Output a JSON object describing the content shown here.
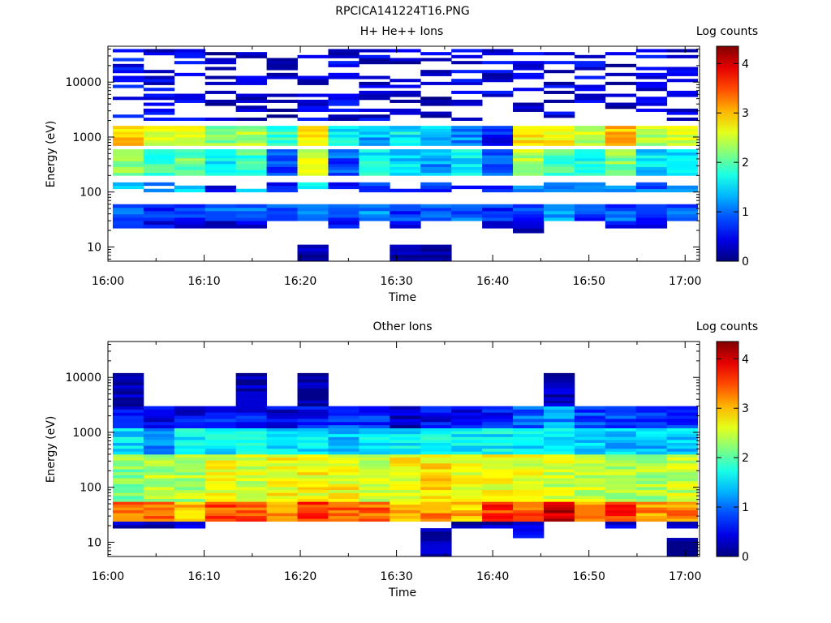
{
  "figure": {
    "title": "RPCICA141224T16.PNG"
  },
  "colorbar": {
    "label": "Log counts",
    "ticks": [
      "0",
      "1",
      "2",
      "3",
      "4"
    ],
    "min": 0,
    "max": 4.35
  },
  "chart_data": [
    {
      "type": "heatmap",
      "title": "H+ He++ Ions",
      "xlabel": "Time",
      "ylabel": "Energy (eV)",
      "x_ticks": [
        "16:00",
        "16:10",
        "16:20",
        "16:30",
        "16:40",
        "16:50",
        "17:00"
      ],
      "x_range_minutes": [
        0,
        61.5
      ],
      "y_scale": "log",
      "y_ticks": [
        "10",
        "100",
        "1000",
        "10000"
      ],
      "y_range": [
        5.5,
        45000
      ],
      "colorbar_label": "Log counts",
      "time_bins_minutes": [
        0.5,
        3.7,
        6.9,
        10.1,
        13.3,
        16.5,
        19.7,
        22.9,
        26.1,
        29.3,
        32.5,
        35.7,
        38.9,
        42.1,
        45.3,
        48.5,
        51.7,
        54.9,
        58.1,
        61.3
      ],
      "energy_profile_log_counts": [
        {
          "energy_range": [
            5.5,
            11
          ],
          "values": [
            null,
            null,
            null,
            null,
            null,
            null,
            0.1,
            null,
            null,
            0.1,
            0.1,
            null,
            null,
            null,
            null,
            null,
            null,
            null,
            null
          ]
        },
        {
          "energy_range": [
            18,
            22
          ],
          "values": [
            null,
            null,
            null,
            null,
            null,
            null,
            null,
            null,
            null,
            null,
            null,
            null,
            null,
            0.3,
            null,
            null,
            null,
            null,
            null
          ]
        },
        {
          "energy_range": [
            22,
            30
          ],
          "values": [
            0.6,
            0.5,
            0.3,
            0.3,
            0.3,
            null,
            null,
            0.5,
            null,
            0.4,
            null,
            null,
            0.5,
            0.5,
            null,
            null,
            0.4,
            0.4,
            null
          ]
        },
        {
          "energy_range": [
            30,
            60
          ],
          "values": [
            0.9,
            0.7,
            0.8,
            0.9,
            1.1,
            0.9,
            1.0,
            0.9,
            1.1,
            0.8,
            0.9,
            0.9,
            0.7,
            0.8,
            1.2,
            0.8,
            0.9,
            0.7,
            0.9
          ]
        },
        {
          "energy_range": [
            100,
            150
          ],
          "values": [
            1.4,
            1.2,
            1.3,
            0.5,
            1.4,
            0.6,
            1.8,
            0.6,
            0.8,
            0.5,
            0.8,
            0.6,
            0.5,
            1.3,
            1.2,
            1.0,
            1.2,
            1.0,
            1.1
          ]
        },
        {
          "energy_range": [
            200,
            600
          ],
          "values": [
            2.2,
            1.9,
            2.1,
            1.6,
            1.9,
            0.8,
            2.6,
            0.9,
            1.6,
            1.5,
            1.2,
            1.6,
            1.0,
            2.4,
            2.0,
            1.8,
            2.2,
            1.5,
            1.6
          ]
        },
        {
          "energy_range": [
            700,
            1600
          ],
          "values": [
            2.9,
            2.5,
            2.5,
            2.2,
            2.4,
            1.8,
            2.8,
            1.6,
            1.3,
            1.6,
            1.4,
            1.2,
            0.6,
            2.8,
            2.7,
            2.5,
            3.0,
            2.4,
            2.5
          ]
        },
        {
          "energy_range": [
            2000,
            40000
          ],
          "values": [
            0.5,
            0.4,
            0.4,
            0.3,
            0.4,
            0.3,
            0.4,
            0.4,
            0.4,
            0.3,
            0.3,
            0.4,
            0.4,
            0.4,
            0.4,
            0.4,
            0.3,
            0.4,
            0.3
          ]
        }
      ]
    },
    {
      "type": "heatmap",
      "title": "Other Ions",
      "xlabel": "Time",
      "ylabel": "Energy (eV)",
      "x_ticks": [
        "16:00",
        "16:10",
        "16:20",
        "16:30",
        "16:40",
        "16:50",
        "17:00"
      ],
      "x_range_minutes": [
        0,
        61.5
      ],
      "y_scale": "log",
      "y_ticks": [
        "10",
        "100",
        "1000",
        "10000"
      ],
      "y_range": [
        5.5,
        45000
      ],
      "colorbar_label": "Log counts",
      "time_bins_minutes": [
        0.5,
        3.7,
        6.9,
        10.1,
        13.3,
        16.5,
        19.7,
        22.9,
        26.1,
        29.3,
        32.5,
        35.7,
        38.9,
        42.1,
        45.3,
        48.5,
        51.7,
        54.9,
        58.1,
        61.3
      ],
      "energy_profile_log_counts": [
        {
          "energy_range": [
            5.5,
            12
          ],
          "values": [
            null,
            null,
            null,
            null,
            null,
            null,
            null,
            null,
            null,
            null,
            0.2,
            null,
            null,
            null,
            null,
            null,
            null,
            null,
            0.1
          ]
        },
        {
          "energy_range": [
            12,
            18
          ],
          "values": [
            null,
            null,
            null,
            null,
            null,
            null,
            null,
            null,
            null,
            null,
            0.2,
            null,
            null,
            0.6,
            null,
            null,
            null,
            null,
            null
          ]
        },
        {
          "energy_range": [
            18,
            24
          ],
          "values": [
            0.2,
            0.2,
            0.5,
            null,
            null,
            null,
            null,
            null,
            null,
            null,
            null,
            0.1,
            0.2,
            0.4,
            null,
            null,
            0.5,
            null,
            0.3
          ]
        },
        {
          "energy_range": [
            24,
            55
          ],
          "values": [
            3.3,
            3.3,
            3.0,
            3.5,
            3.4,
            3.2,
            3.6,
            3.4,
            3.4,
            3.0,
            3.2,
            3.0,
            3.6,
            3.4,
            4.0,
            3.2,
            3.6,
            3.2,
            3.2
          ]
        },
        {
          "energy_range": [
            55,
            400
          ],
          "values": [
            2.2,
            2.4,
            2.4,
            2.6,
            2.5,
            2.7,
            2.7,
            2.7,
            2.5,
            2.7,
            2.8,
            2.6,
            2.7,
            2.6,
            2.5,
            2.5,
            2.4,
            2.3,
            2.5
          ]
        },
        {
          "energy_range": [
            400,
            1200
          ],
          "values": [
            1.5,
            1.2,
            1.6,
            1.6,
            1.7,
            1.5,
            1.6,
            1.4,
            1.6,
            1.6,
            1.6,
            1.6,
            1.6,
            1.5,
            1.6,
            1.5,
            1.4,
            1.4,
            1.4
          ]
        },
        {
          "energy_range": [
            1200,
            3000
          ],
          "values": [
            0.6,
            0.4,
            0.5,
            0.6,
            0.6,
            0.4,
            0.6,
            0.8,
            0.7,
            0.3,
            0.5,
            0.5,
            0.6,
            1.0,
            1.2,
            0.8,
            0.8,
            0.7,
            0.7
          ]
        },
        {
          "energy_range": [
            3000,
            12000
          ],
          "values": [
            0.2,
            null,
            null,
            null,
            0.2,
            null,
            0.2,
            null,
            null,
            null,
            null,
            null,
            null,
            null,
            0.2,
            null,
            null,
            null,
            null
          ]
        }
      ]
    }
  ]
}
